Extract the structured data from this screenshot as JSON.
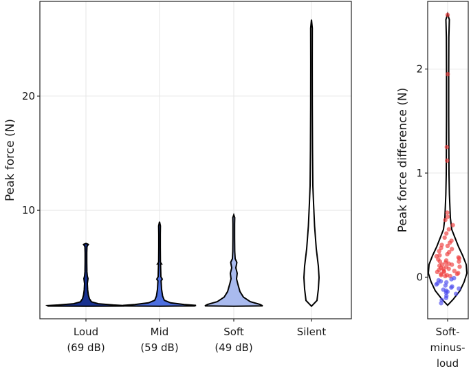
{
  "chart_data": [
    {
      "type": "violin",
      "ylabel": "Peak force (N)",
      "xlabel": "",
      "ylim": [
        0.5,
        28.3
      ],
      "yticks": [
        10,
        20
      ],
      "grid": true,
      "legend": "none",
      "categories": [
        {
          "label_lines": [
            "Loud",
            "(69 dB)"
          ],
          "color": "#18318f",
          "min": 1.6,
          "max": 7.1,
          "median": 1.7
        },
        {
          "label_lines": [
            "Mid",
            "(59 dB)"
          ],
          "color": "#4d6fe0",
          "min": 1.6,
          "max": 9.0,
          "median": 1.8
        },
        {
          "label_lines": [
            "Soft",
            "(49 dB)"
          ],
          "color": "#a9baee",
          "min": 1.6,
          "max": 9.6,
          "median": 1.9
        },
        {
          "label_lines": [
            "Silent"
          ],
          "color": "#ffffff",
          "min": 1.6,
          "max": 26.7,
          "median": 5.0
        }
      ]
    },
    {
      "type": "violin",
      "ylabel": "Peak force difference (N)",
      "xlabel": "",
      "ylim": [
        -0.4,
        2.65
      ],
      "yticks": [
        0,
        1,
        2
      ],
      "grid": true,
      "legend": "none",
      "categories": [
        {
          "label_lines": [
            "Soft-",
            "minus-",
            "loud"
          ],
          "color": "#ffffff",
          "min": -0.27,
          "max": 2.53
        }
      ],
      "points_positive_color": "#ee3b3b",
      "points_negative_color": "#4a4aee",
      "points": [
        2.52,
        1.95,
        1.25,
        1.12,
        0.62,
        0.58,
        0.55,
        0.5,
        0.46,
        0.42,
        0.38,
        0.35,
        0.33,
        0.31,
        0.3,
        0.28,
        0.27,
        0.25,
        0.24,
        0.22,
        0.21,
        0.2,
        0.19,
        0.18,
        0.17,
        0.16,
        0.15,
        0.15,
        0.14,
        0.13,
        0.12,
        0.12,
        0.11,
        0.1,
        0.1,
        0.09,
        0.08,
        0.08,
        0.07,
        0.06,
        0.06,
        0.05,
        0.05,
        0.04,
        0.03,
        0.03,
        0.02,
        0.02,
        0.01,
        0.01,
        -0.01,
        -0.02,
        -0.03,
        -0.04,
        -0.05,
        -0.06,
        -0.07,
        -0.08,
        -0.09,
        -0.1,
        -0.11,
        -0.12,
        -0.13,
        -0.14,
        -0.15,
        -0.16,
        -0.18,
        -0.2,
        -0.22,
        -0.25
      ]
    }
  ]
}
